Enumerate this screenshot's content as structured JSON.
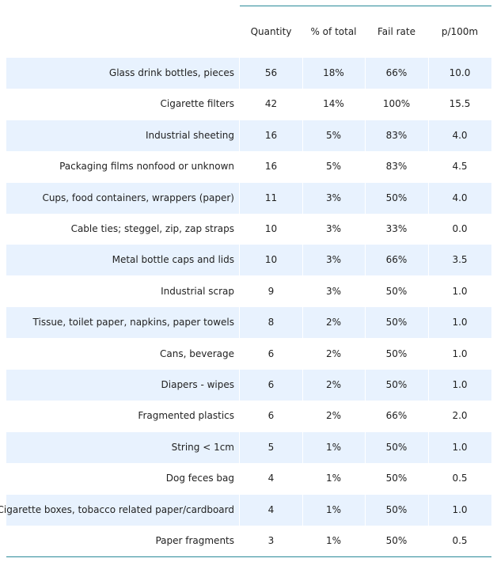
{
  "table": {
    "columns": [
      "",
      "Quantity",
      "% of total",
      "Fail rate",
      "p/100m"
    ],
    "rows": [
      {
        "name": "Glass drink bottles, pieces",
        "quantity": "56",
        "pct_total": "18%",
        "fail_rate": "66%",
        "p100m": "10.0"
      },
      {
        "name": "Cigarette filters",
        "quantity": "42",
        "pct_total": "14%",
        "fail_rate": "100%",
        "p100m": "15.5"
      },
      {
        "name": "Industrial sheeting",
        "quantity": "16",
        "pct_total": "5%",
        "fail_rate": "83%",
        "p100m": "4.0"
      },
      {
        "name": "Packaging films nonfood or unknown",
        "quantity": "16",
        "pct_total": "5%",
        "fail_rate": "83%",
        "p100m": "4.5"
      },
      {
        "name": "Cups, food containers, wrappers (paper)",
        "quantity": "11",
        "pct_total": "3%",
        "fail_rate": "50%",
        "p100m": "4.0"
      },
      {
        "name": "Cable ties; steggel, zip, zap straps",
        "quantity": "10",
        "pct_total": "3%",
        "fail_rate": "33%",
        "p100m": "0.0"
      },
      {
        "name": "Metal bottle caps and lids",
        "quantity": "10",
        "pct_total": "3%",
        "fail_rate": "66%",
        "p100m": "3.5"
      },
      {
        "name": "Industrial scrap",
        "quantity": "9",
        "pct_total": "3%",
        "fail_rate": "50%",
        "p100m": "1.0"
      },
      {
        "name": "Tissue, toilet paper, napkins, paper towels",
        "quantity": "8",
        "pct_total": "2%",
        "fail_rate": "50%",
        "p100m": "1.0"
      },
      {
        "name": "Cans, beverage",
        "quantity": "6",
        "pct_total": "2%",
        "fail_rate": "50%",
        "p100m": "1.0"
      },
      {
        "name": "Diapers - wipes",
        "quantity": "6",
        "pct_total": "2%",
        "fail_rate": "50%",
        "p100m": "1.0"
      },
      {
        "name": "Fragmented plastics",
        "quantity": "6",
        "pct_total": "2%",
        "fail_rate": "66%",
        "p100m": "2.0"
      },
      {
        "name": "String < 1cm",
        "quantity": "5",
        "pct_total": "1%",
        "fail_rate": "50%",
        "p100m": "1.0"
      },
      {
        "name": "Dog feces bag",
        "quantity": "4",
        "pct_total": "1%",
        "fail_rate": "50%",
        "p100m": "0.5"
      },
      {
        "name": "Cigarette boxes, tobacco related paper/cardboard",
        "quantity": "4",
        "pct_total": "1%",
        "fail_rate": "50%",
        "p100m": "1.0"
      },
      {
        "name": "Paper fragments",
        "quantity": "3",
        "pct_total": "1%",
        "fail_rate": "50%",
        "p100m": "0.5"
      }
    ]
  },
  "colors": {
    "stripe": "#e8f2fe",
    "rule": "#2a8a99",
    "text": "#222222"
  }
}
